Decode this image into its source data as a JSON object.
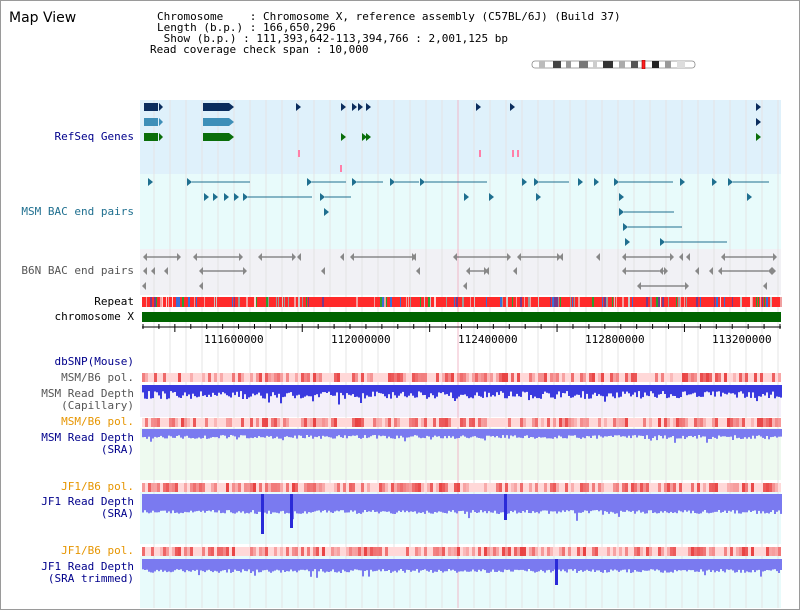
{
  "view": {
    "title": "Map View"
  },
  "info": {
    "chromosome_line": "Chromosome    : Chromosome X, reference assembly (C57BL/6J) (Build 37)",
    "length_line": "Length (b.p.) : 166,650,296",
    "show_line": " Show (b.p.) : 111,393,642-113,394,766 : 2,001,125 bp",
    "coverage_line": "Read coverage check span : 10,000"
  },
  "tracks": {
    "refseq": "RefSeq Genes",
    "msm_bac": "MSM BAC end pairs",
    "b6n_bac": "B6N BAC end pairs",
    "repeat": "Repeat",
    "chrom": "chromosome X",
    "dbsnp": "dbSNP(Mouse)",
    "msm_b6_pol_1": "MSM/B6 pol.",
    "msm_depth_cap_1": "MSM Read Depth",
    "msm_depth_cap_2": "(Capillary)",
    "msm_b6_pol_2": "MSM/B6 pol.",
    "msm_depth_sra_1": "MSM Read Depth",
    "msm_depth_sra_2": "(SRA)",
    "jf1_b6_pol_1": "JF1/B6 pol.",
    "jf1_depth_sra_1": "JF1 Read Depth",
    "jf1_depth_sra_2": "(SRA)",
    "jf1_b6_pol_2": "JF1/B6 pol.",
    "jf1_depth_trim_1": "JF1 Read Depth",
    "jf1_depth_trim_2": "(SRA trimmed)"
  },
  "axis": {
    "ticks": [
      "111600000",
      "112000000",
      "112400000",
      "112800000",
      "113200000"
    ]
  },
  "colors": {
    "blue_label": "#00008b",
    "orange_label": "#e69500",
    "gray_label": "#555555",
    "refseq_bg": "#dff1fb",
    "bac_bg": "#e8fbfb",
    "b6n_bg": "#f1f1f5",
    "chrom_green": "#006400",
    "depth_blue": "#3a3adf",
    "depth_light": "#7a7af0",
    "pol_red": "#e84040",
    "gene_dark": "#0b2d5e",
    "gene_mid": "#3e8fb8",
    "gene_green": "#0a6e0a",
    "bac_teal": "#1f6f8f"
  }
}
